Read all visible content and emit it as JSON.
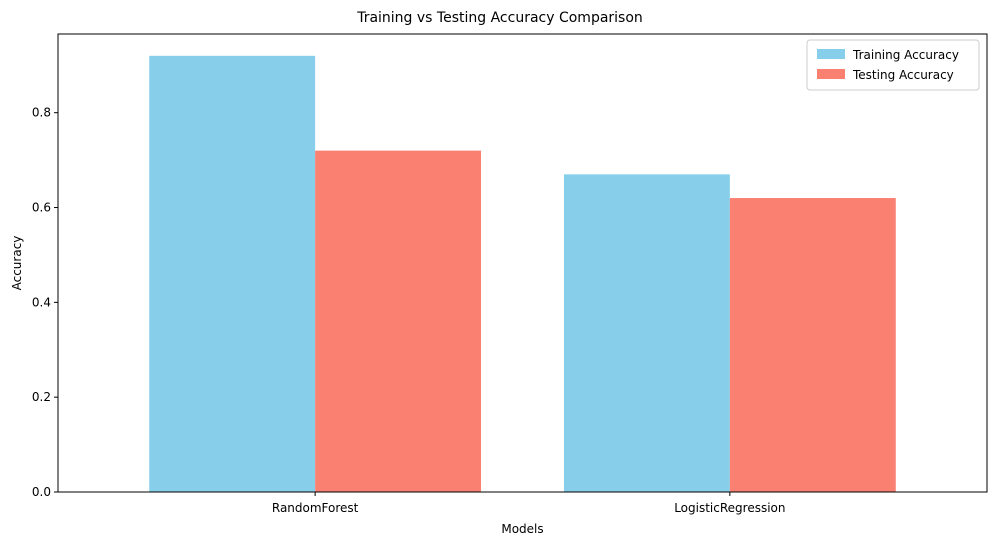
{
  "chart_data": {
    "type": "bar",
    "title": "Training vs Testing Accuracy Comparison",
    "xlabel": "Models",
    "ylabel": "Accuracy",
    "categories": [
      "RandomForest",
      "LogisticRegression"
    ],
    "series": [
      {
        "name": "Training Accuracy",
        "color": "#87ceeb",
        "values": [
          0.92,
          0.67
        ]
      },
      {
        "name": "Testing Accuracy",
        "color": "#fa8072",
        "values": [
          0.72,
          0.62
        ]
      }
    ],
    "ylim": [
      0,
      0.966
    ],
    "yticks": [
      0.0,
      0.2,
      0.4,
      0.6,
      0.8
    ],
    "ytick_labels": [
      "0.0",
      "0.2",
      "0.4",
      "0.6",
      "0.8"
    ],
    "grid": false,
    "legend": "top-right"
  }
}
